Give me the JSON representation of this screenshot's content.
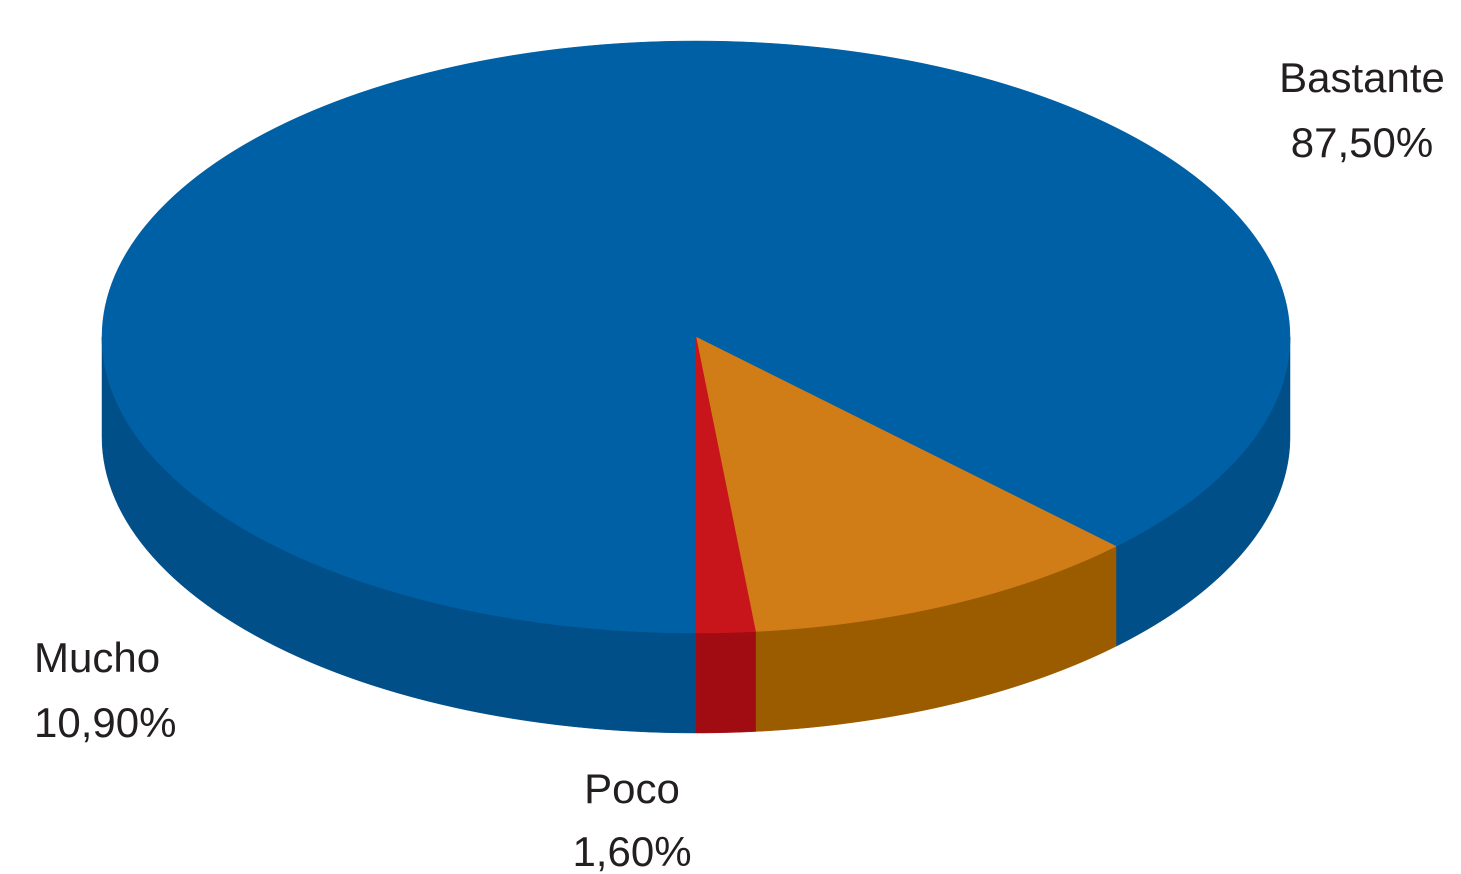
{
  "chart_data": {
    "type": "pie",
    "style": "3d",
    "title": "",
    "slices": [
      {
        "label": "Bastante",
        "value_label": "87,50%",
        "value": 87.5,
        "color": "#0060a5",
        "side_color": "#004f89"
      },
      {
        "label": "Mucho",
        "value_label": "10,90%",
        "value": 10.9,
        "color": "#d07c17",
        "side_color": "#9b5c00"
      },
      {
        "label": "Poco",
        "value_label": "1,60%",
        "value": 1.6,
        "color": "#c8151b",
        "side_color": "#a10b12"
      }
    ]
  }
}
